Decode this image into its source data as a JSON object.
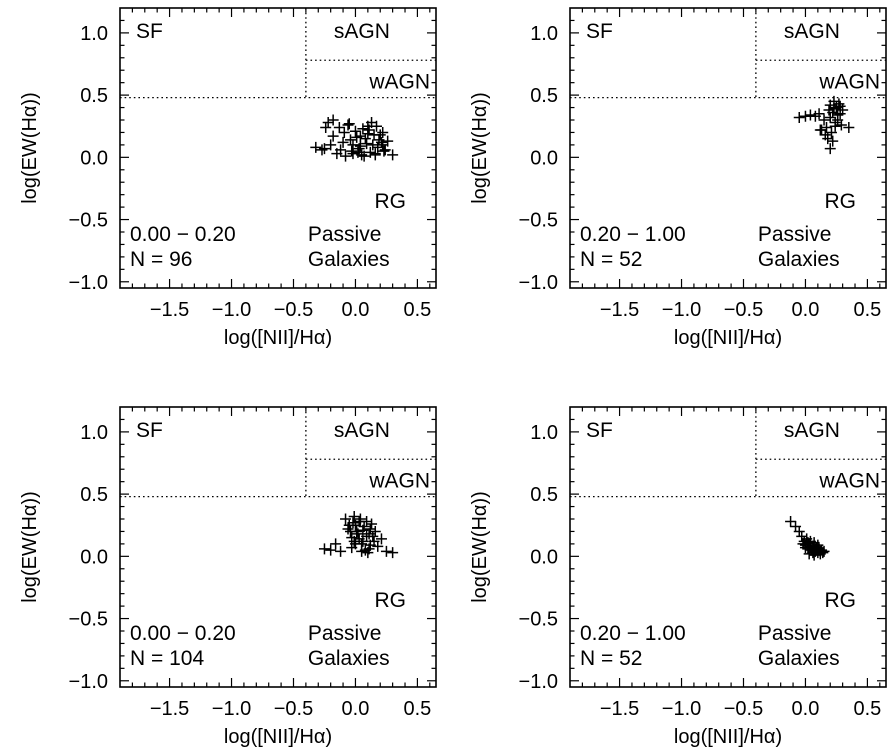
{
  "figure": {
    "background": "#ffffff",
    "ink": "#000000"
  },
  "chart_data": [
    {
      "type": "scatter",
      "panel": "top-left",
      "xlabel": "log([NII]/Hα)",
      "ylabel": "log(EW(Hα))",
      "xlim": [
        -1.9,
        0.65
      ],
      "ylim": [
        -1.05,
        1.2
      ],
      "xticks": [
        "−1.5",
        "−1.0",
        "−0.5",
        "0.0",
        "0.5"
      ],
      "xtick_values": [
        -1.5,
        -1.0,
        -0.5,
        0.0,
        0.5
      ],
      "yticks": [
        "−1.0",
        "−0.5",
        "0.0",
        "0.5",
        "1.0"
      ],
      "ytick_values": [
        -1.0,
        -0.5,
        0.0,
        0.5,
        1.0
      ],
      "region_labels": {
        "sf": "SF",
        "sagn": "sAGN",
        "wagn": "wAGN",
        "rg": "RG",
        "passive_1": "Passive",
        "passive_2": "Galaxies"
      },
      "dividers": {
        "x_nii": -0.4,
        "y_sf": 0.48,
        "y_sagn": 0.78
      },
      "bin_label": "0.00 − 0.20",
      "count_label": "N =  96",
      "series": [
        {
          "marker": "+",
          "x": [
            -0.32,
            -0.27,
            -0.22,
            -0.18,
            -0.13,
            -0.09,
            -0.05,
            -0.02,
            0.02,
            0.05,
            0.08,
            0.11,
            0.14,
            0.17,
            0.2,
            0.23,
            0.26,
            0.3,
            -0.25,
            -0.2,
            -0.15,
            -0.1,
            -0.06,
            -0.03,
            0.01,
            0.04,
            0.07,
            0.1,
            0.13,
            0.16,
            0.19,
            0.22,
            -0.24,
            -0.18,
            -0.12,
            -0.08,
            -0.04,
            0.0,
            0.03,
            0.06,
            0.09,
            0.12,
            0.15,
            0.18,
            0.21,
            0.24,
            -0.02,
            0.04,
            0.1,
            0.16,
            0.22
          ],
          "y": [
            0.08,
            0.06,
            0.28,
            0.3,
            0.24,
            0.2,
            0.27,
            0.1,
            0.04,
            0.02,
            0.15,
            0.22,
            0.1,
            0.25,
            0.18,
            0.05,
            0.13,
            0.02,
            0.07,
            0.1,
            0.03,
            0.12,
            0.26,
            0.05,
            0.16,
            0.09,
            0.01,
            0.19,
            0.28,
            0.03,
            0.14,
            0.2,
            0.24,
            0.17,
            0.06,
            0.01,
            0.14,
            0.21,
            0.07,
            0.23,
            0.11,
            0.04,
            0.18,
            0.08,
            0.12,
            0.06,
            0.03,
            0.17,
            0.25,
            0.02,
            0.1
          ]
        }
      ]
    },
    {
      "type": "scatter",
      "panel": "top-right",
      "xlabel": "log([NII]/Hα)",
      "ylabel": "log(EW(Hα))",
      "xlim": [
        -1.9,
        0.65
      ],
      "ylim": [
        -1.05,
        1.2
      ],
      "xticks": [
        "−1.5",
        "−1.0",
        "−0.5",
        "0.0",
        "0.5"
      ],
      "xtick_values": [
        -1.5,
        -1.0,
        -0.5,
        0.0,
        0.5
      ],
      "yticks": [
        "−1.0",
        "−0.5",
        "0.0",
        "0.5",
        "1.0"
      ],
      "ytick_values": [
        -1.0,
        -0.5,
        0.0,
        0.5,
        1.0
      ],
      "region_labels": {
        "sf": "SF",
        "sagn": "sAGN",
        "wagn": "wAGN",
        "rg": "RG",
        "passive_1": "Passive",
        "passive_2": "Galaxies"
      },
      "dividers": {
        "x_nii": -0.4,
        "y_sf": 0.48,
        "y_sagn": 0.78
      },
      "bin_label": "0.20 − 1.00",
      "count_label": "N =  52",
      "series": [
        {
          "marker": "+",
          "x": [
            -0.05,
            0.0,
            0.04,
            0.08,
            0.11,
            0.13,
            0.15,
            0.17,
            0.19,
            0.2,
            0.21,
            0.22,
            0.23,
            0.24,
            0.25,
            0.26,
            0.27,
            0.28,
            0.29,
            0.3,
            0.35,
            0.12,
            0.16,
            0.2,
            0.24,
            0.28,
            0.18,
            0.22,
            0.26,
            0.2,
            0.23
          ],
          "y": [
            0.32,
            0.33,
            0.34,
            0.33,
            0.35,
            0.22,
            0.3,
            0.24,
            0.38,
            0.42,
            0.2,
            0.36,
            0.45,
            0.25,
            0.4,
            0.3,
            0.43,
            0.35,
            0.26,
            0.38,
            0.24,
            0.22,
            0.18,
            0.32,
            0.28,
            0.41,
            0.15,
            0.13,
            0.34,
            0.07,
            0.39
          ]
        }
      ]
    },
    {
      "type": "scatter",
      "panel": "bottom-left",
      "xlabel": "log([NII]/Hα)",
      "ylabel": "log(EW(Hα))",
      "xlim": [
        -1.9,
        0.65
      ],
      "ylim": [
        -1.05,
        1.2
      ],
      "xticks": [
        "−1.5",
        "−1.0",
        "−0.5",
        "0.0",
        "0.5"
      ],
      "xtick_values": [
        -1.5,
        -1.0,
        -0.5,
        0.0,
        0.5
      ],
      "yticks": [
        "−1.0",
        "−0.5",
        "0.0",
        "0.5",
        "1.0"
      ],
      "ytick_values": [
        -1.0,
        -0.5,
        0.0,
        0.5,
        1.0
      ],
      "region_labels": {
        "sf": "SF",
        "sagn": "sAGN",
        "wagn": "wAGN",
        "rg": "RG",
        "passive_1": "Passive",
        "passive_2": "Galaxies"
      },
      "dividers": {
        "x_nii": -0.4,
        "y_sf": 0.48,
        "y_sagn": 0.78
      },
      "bin_label": "0.00 − 0.20",
      "count_label": "N = 104",
      "series": [
        {
          "marker": "+",
          "x": [
            -0.25,
            -0.2,
            -0.16,
            -0.12,
            -0.08,
            -0.05,
            -0.03,
            -0.01,
            0.01,
            0.03,
            0.05,
            0.07,
            0.09,
            0.11,
            0.13,
            0.15,
            0.18,
            0.21,
            0.25,
            0.3,
            -0.04,
            0.0,
            0.04,
            0.08,
            0.12,
            -0.02,
            0.02,
            0.06,
            0.1,
            0.14,
            -0.06,
            -0.03,
            0.0,
            0.03,
            0.06,
            0.09,
            0.12,
            0.16,
            -0.01,
            0.05,
            0.11
          ],
          "y": [
            0.06,
            0.05,
            0.1,
            0.04,
            0.3,
            0.25,
            0.15,
            0.32,
            0.2,
            0.28,
            0.1,
            0.24,
            0.16,
            0.06,
            0.26,
            0.12,
            0.08,
            0.14,
            0.04,
            0.03,
            0.2,
            0.1,
            0.3,
            0.05,
            0.22,
            0.27,
            0.18,
            0.12,
            0.03,
            0.16,
            0.22,
            0.07,
            0.25,
            0.14,
            0.21,
            0.28,
            0.09,
            0.2,
            0.12,
            0.04,
            0.18
          ]
        }
      ]
    },
    {
      "type": "scatter",
      "panel": "bottom-right",
      "xlabel": "log([NII]/Hα)",
      "ylabel": "log(EW(Hα))",
      "xlim": [
        -1.9,
        0.65
      ],
      "ylim": [
        -1.05,
        1.2
      ],
      "xticks": [
        "−1.5",
        "−1.0",
        "−0.5",
        "0.0",
        "0.5"
      ],
      "xtick_values": [
        -1.5,
        -1.0,
        -0.5,
        0.0,
        0.5
      ],
      "yticks": [
        "−1.0",
        "−0.5",
        "0.0",
        "0.5",
        "1.0"
      ],
      "ytick_values": [
        -1.0,
        -0.5,
        0.0,
        0.5,
        1.0
      ],
      "region_labels": {
        "sf": "SF",
        "sagn": "sAGN",
        "wagn": "wAGN",
        "rg": "RG",
        "passive_1": "Passive",
        "passive_2": "Galaxies"
      },
      "dividers": {
        "x_nii": -0.4,
        "y_sf": 0.48,
        "y_sagn": 0.78
      },
      "bin_label": "0.20 − 1.00",
      "count_label": "N =  52",
      "series": [
        {
          "marker": "+",
          "x": [
            -0.12,
            -0.08,
            -0.05,
            -0.03,
            -0.01,
            0.0,
            0.01,
            0.02,
            0.03,
            0.04,
            0.05,
            0.06,
            0.07,
            0.08,
            0.09,
            0.1,
            0.11,
            0.12,
            0.13,
            0.14,
            0.15,
            -0.02,
            0.0,
            0.02,
            0.04,
            0.06,
            0.08,
            0.1,
            0.12,
            0.03,
            0.07
          ],
          "y": [
            0.28,
            0.24,
            0.2,
            0.16,
            0.12,
            0.09,
            0.14,
            0.06,
            0.1,
            0.12,
            0.05,
            0.08,
            0.11,
            0.04,
            0.07,
            0.03,
            0.06,
            0.02,
            0.05,
            0.03,
            0.04,
            0.1,
            0.07,
            0.11,
            0.08,
            0.03,
            0.06,
            0.09,
            0.04,
            0.02,
            0.01
          ]
        }
      ]
    }
  ]
}
